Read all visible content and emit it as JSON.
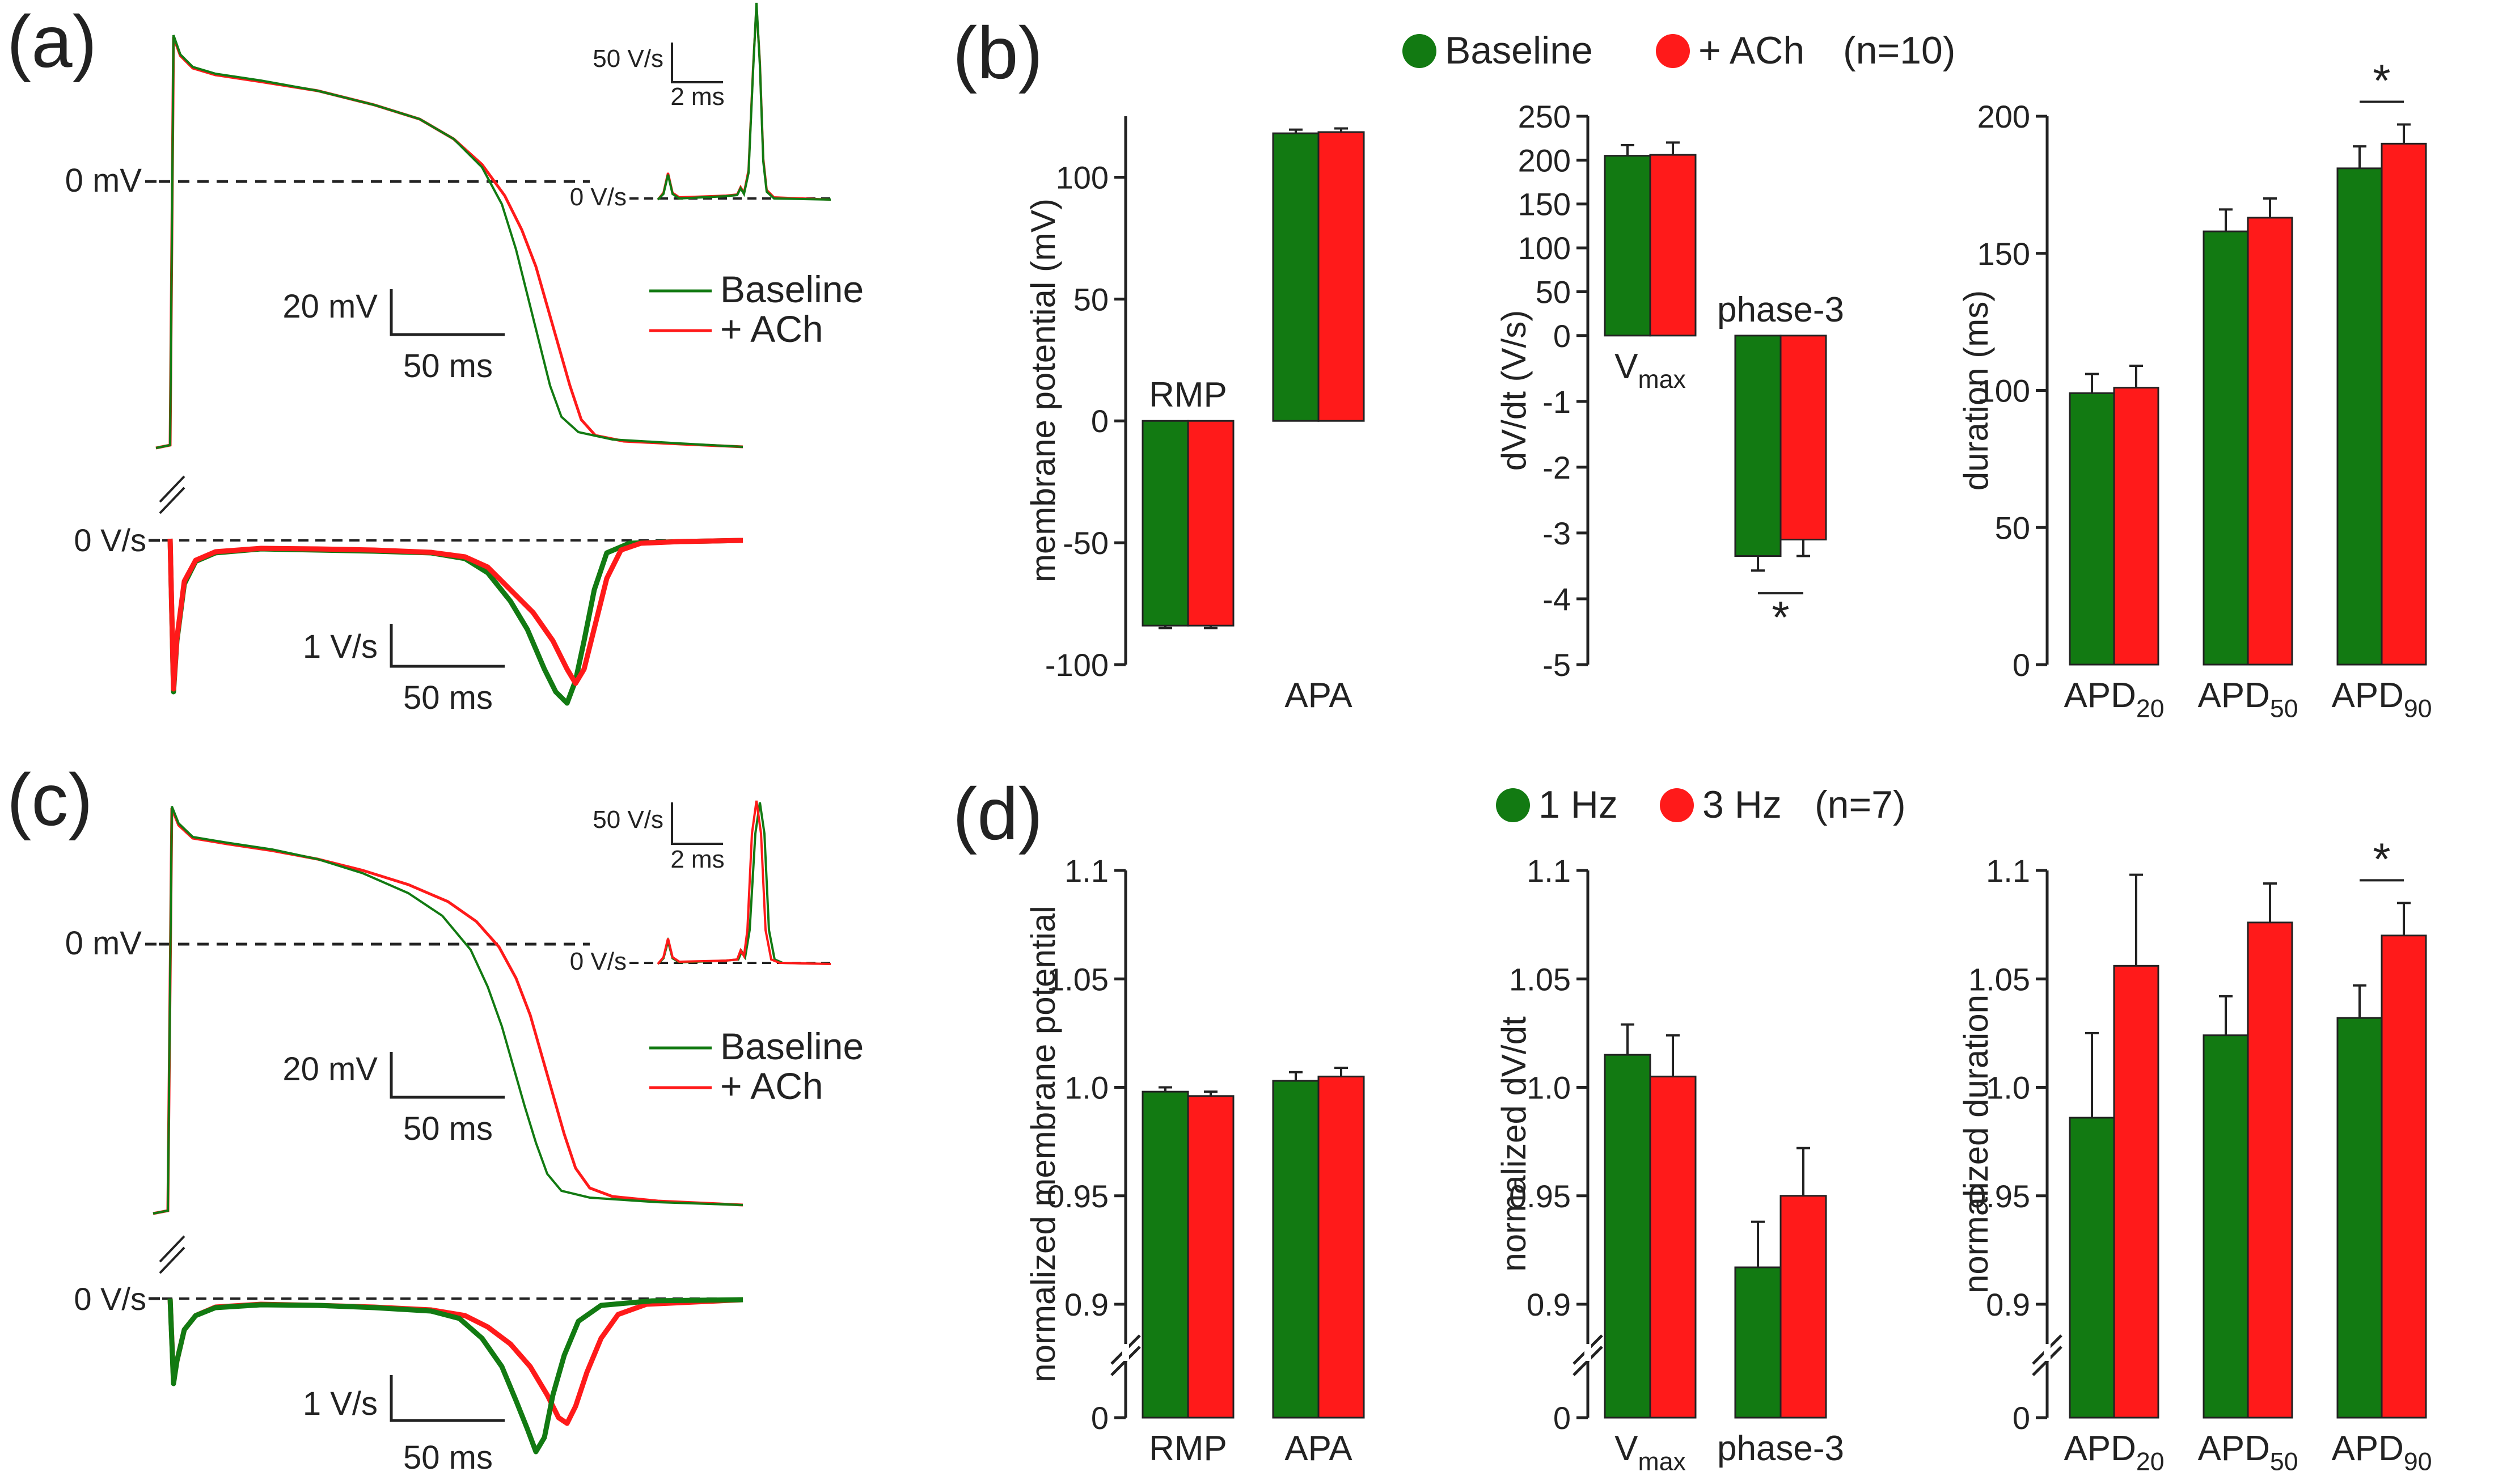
{
  "colors": {
    "green": "#127a12",
    "red": "#ff1a1a",
    "axis": "#222222"
  },
  "legend_ach": {
    "baseline": "Baseline",
    "treatment": "+ ACh",
    "n": "(n=10)"
  },
  "legend_rate": {
    "baseline": "1 Hz",
    "treatment": "3 Hz",
    "n": "(n=7)"
  },
  "traces": {
    "a": {
      "label": "(a)",
      "zero_mv": "0 mV",
      "zero_dvdt": "0 V/s",
      "inset_scale_y": "50 V/s",
      "inset_scale_x": "2 ms",
      "inset_zero": "0 V/s",
      "scale_v": "20 mV",
      "scale_t": "50 ms",
      "scale_dv": "1 V/s",
      "scale_t2": "50 ms",
      "legend_baseline": "Baseline",
      "legend_treatment": "+ ACh"
    },
    "c": {
      "label": "(c)",
      "zero_mv": "0 mV",
      "zero_dvdt": "0 V/s",
      "inset_scale_y": "50 V/s",
      "inset_scale_x": "2 ms",
      "inset_zero": "0 V/s",
      "scale_v": "20 mV",
      "scale_t": "50 ms",
      "scale_dv": "1 V/s",
      "scale_t2": "50 ms",
      "legend_baseline": "Baseline",
      "legend_treatment": "+ ACh"
    }
  },
  "chart_data": [
    {
      "panel": "b",
      "label": "(b)",
      "type": "bar",
      "ylabel": "membrane potential (mV)",
      "ylim": [
        -100,
        125
      ],
      "ticks": [
        -100,
        -50,
        0,
        50,
        100
      ],
      "tick_labels": [
        "-100",
        "-50",
        "0",
        "50",
        "100"
      ],
      "category_labels_at": "mixed",
      "categories": [
        {
          "main": "RMP",
          "sub": "",
          "pos": "top"
        },
        {
          "main": "APA",
          "sub": "",
          "pos": "bottom"
        }
      ],
      "series": [
        {
          "name": "Baseline",
          "values": [
            -84,
            118
          ],
          "errors": [
            1,
            1.5
          ]
        },
        {
          "name": "+ ACh",
          "values": [
            -84,
            118.5
          ],
          "errors": [
            1,
            1.5
          ]
        }
      ]
    },
    {
      "panel": "b",
      "type": "bar",
      "ylabel": "dV/dt (V/s)",
      "split_scale": true,
      "ylim": [
        -5,
        250
      ],
      "tick_labels": [
        "250",
        "200",
        "150",
        "100",
        "50",
        "0",
        "-1",
        "-2",
        "-3",
        "-4",
        "-5"
      ],
      "categories": [
        {
          "main": "V",
          "sub": "max",
          "pos": "bottom"
        },
        {
          "main": "phase-3",
          "sub": "",
          "pos": "top"
        }
      ],
      "series": [
        {
          "name": "Baseline",
          "values": [
            205,
            -3.35
          ],
          "errors": [
            12,
            0.22
          ]
        },
        {
          "name": "+ ACh",
          "values": [
            206,
            -3.1
          ],
          "errors": [
            14,
            0.25
          ]
        }
      ],
      "significance": [
        {
          "category": 1,
          "mark": "*",
          "side": "below"
        }
      ]
    },
    {
      "panel": "b",
      "type": "bar",
      "ylabel": "duration (ms)",
      "ylim": [
        0,
        200
      ],
      "ticks": [
        0,
        50,
        100,
        150,
        200
      ],
      "tick_labels": [
        "0",
        "50",
        "100",
        "150",
        "200"
      ],
      "categories": [
        {
          "main": "APD",
          "sub": "20",
          "pos": "bottom"
        },
        {
          "main": "APD",
          "sub": "50",
          "pos": "bottom"
        },
        {
          "main": "APD",
          "sub": "90",
          "pos": "bottom"
        }
      ],
      "series": [
        {
          "name": "Baseline",
          "values": [
            99,
            158,
            181
          ],
          "errors": [
            7,
            8,
            8
          ]
        },
        {
          "name": "+ ACh",
          "values": [
            101,
            163,
            190
          ],
          "errors": [
            8,
            7,
            7
          ]
        }
      ],
      "significance": [
        {
          "category": 2,
          "mark": "*",
          "side": "above"
        }
      ]
    },
    {
      "panel": "d",
      "label": "(d)",
      "type": "bar",
      "ylabel": "normalized membrane potential",
      "ylim": [
        0.85,
        1.1
      ],
      "axis_break": true,
      "ticks": [
        0.9,
        0.95,
        1.0,
        1.05,
        1.1
      ],
      "tick_labels": [
        "0.9",
        "0.95",
        "1.0",
        "1.05",
        "1.1"
      ],
      "zero_label": "0",
      "categories": [
        {
          "main": "RMP",
          "sub": "",
          "pos": "bottom"
        },
        {
          "main": "APA",
          "sub": "",
          "pos": "bottom"
        }
      ],
      "series": [
        {
          "name": "1 Hz",
          "values": [
            0.998,
            1.003
          ],
          "errors": [
            0.002,
            0.004
          ]
        },
        {
          "name": "3 Hz",
          "values": [
            0.996,
            1.005
          ],
          "errors": [
            0.002,
            0.004
          ]
        }
      ]
    },
    {
      "panel": "d",
      "type": "bar",
      "ylabel": "normalized dV/dt",
      "ylim": [
        0.85,
        1.1
      ],
      "axis_break": true,
      "ticks": [
        0.9,
        0.95,
        1.0,
        1.05,
        1.1
      ],
      "tick_labels": [
        "0.9",
        "0.95",
        "1.0",
        "1.05",
        "1.1"
      ],
      "zero_label": "0",
      "categories": [
        {
          "main": "V",
          "sub": "max",
          "pos": "bottom"
        },
        {
          "main": "phase-3",
          "sub": "",
          "pos": "bottom"
        }
      ],
      "series": [
        {
          "name": "1 Hz",
          "values": [
            1.015,
            0.917
          ],
          "errors": [
            0.014,
            0.021
          ]
        },
        {
          "name": "3 Hz",
          "values": [
            1.005,
            0.95
          ],
          "errors": [
            0.019,
            0.022
          ]
        }
      ]
    },
    {
      "panel": "d",
      "type": "bar",
      "ylabel": "normalized duration",
      "ylim": [
        0.85,
        1.1
      ],
      "axis_break": true,
      "ticks": [
        0.9,
        0.95,
        1.0,
        1.05,
        1.1
      ],
      "tick_labels": [
        "0.9",
        "0.95",
        "1.0",
        "1.05",
        "1.1"
      ],
      "zero_label": "0",
      "categories": [
        {
          "main": "APD",
          "sub": "20",
          "pos": "bottom"
        },
        {
          "main": "APD",
          "sub": "50",
          "pos": "bottom"
        },
        {
          "main": "APD",
          "sub": "90",
          "pos": "bottom"
        }
      ],
      "series": [
        {
          "name": "1 Hz",
          "values": [
            0.986,
            1.024,
            1.032
          ],
          "errors": [
            0.039,
            0.018,
            0.015
          ]
        },
        {
          "name": "3 Hz",
          "values": [
            1.056,
            1.076,
            1.07
          ],
          "errors": [
            0.042,
            0.018,
            0.015
          ]
        }
      ],
      "significance": [
        {
          "category": 2,
          "mark": "*",
          "side": "above"
        }
      ]
    }
  ]
}
